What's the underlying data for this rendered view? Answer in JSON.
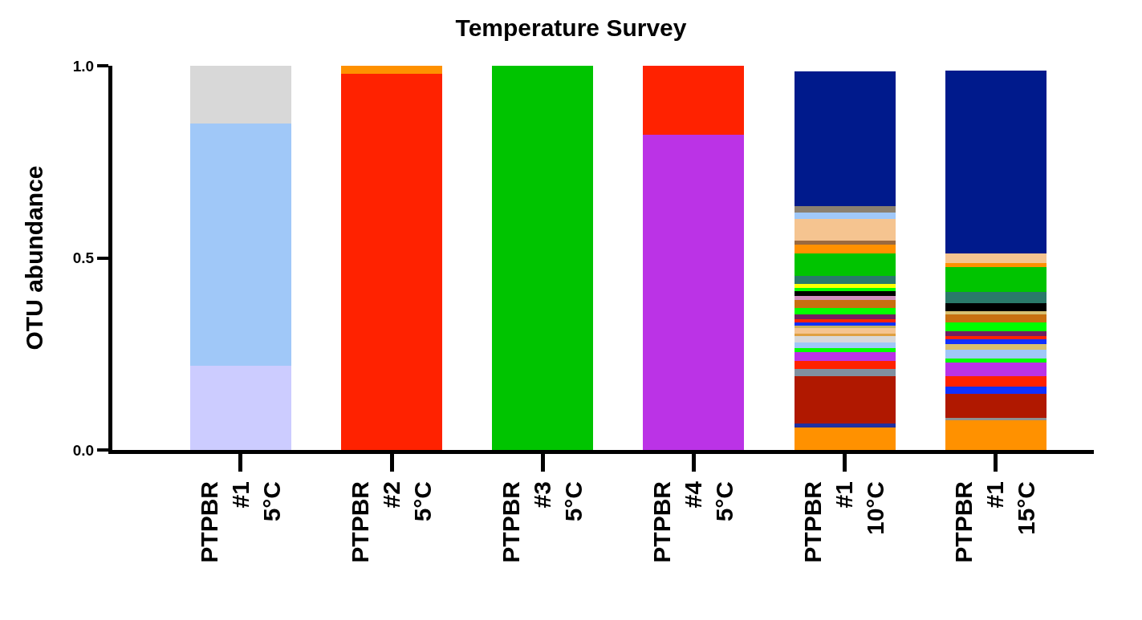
{
  "chart_data": {
    "type": "bar",
    "title": "Temperature Survey",
    "ylabel": "OTU abundance",
    "stacked": true,
    "categories": [
      "PTPBR\n#1\n5°C",
      "PTPBR\n#2\n5°C",
      "PTPBR\n#3\n5°C",
      "PTPBR\n#4\n5°C",
      "PTPBR\n#1\n10°C",
      "PTPBR\n#1\n15°C"
    ],
    "ylim": [
      0,
      1.0
    ],
    "yticks": [
      {
        "value": 0,
        "label": "0.0"
      },
      0.5,
      {
        "value": 1,
        "label": "1.0"
      }
    ],
    "series": [
      {
        "values": [
          0.22,
          0.98,
          1.0,
          0.82,
          0.058,
          0.077
        ],
        "colors": [
          "#ccccff",
          "#ff2200",
          "#00c400",
          "#bb33e6",
          "#ff9100",
          "#ff9100"
        ]
      },
      {
        "values": [
          0.63,
          0.02,
          null,
          0.18,
          0.01,
          0.007
        ],
        "colors": [
          "#a0c8f8",
          "#ff9100",
          null,
          "#ff2200",
          "#2030a0",
          "#909090"
        ]
      },
      {
        "values": [
          0.15,
          null,
          null,
          null,
          0.125,
          0.063
        ],
        "colors": [
          "#d8d8d8",
          null,
          null,
          null,
          "#b01800",
          "#b01800"
        ]
      },
      {
        "values": [
          null,
          null,
          null,
          null,
          0.017,
          0.017
        ],
        "colors": [
          null,
          null,
          null,
          null,
          "#8090a0",
          "#1030ff"
        ]
      },
      {
        "values": [
          null,
          null,
          null,
          null,
          0.021,
          0.028
        ],
        "colors": [
          null,
          null,
          null,
          null,
          "#ff2200",
          "#ff2200"
        ]
      },
      {
        "values": [
          null,
          null,
          null,
          null,
          0.024,
          0.035
        ],
        "colors": [
          null,
          null,
          null,
          null,
          "#bb33e6",
          "#bb33e6"
        ]
      },
      {
        "values": [
          null,
          null,
          null,
          null,
          0.01,
          0.01
        ],
        "colors": [
          null,
          null,
          null,
          null,
          "#00ff00",
          "#00ff00"
        ]
      },
      {
        "values": [
          null,
          null,
          null,
          null,
          0.015,
          0.024
        ],
        "colors": [
          null,
          null,
          null,
          null,
          "#a0c8f8",
          "#a0c8f8"
        ]
      },
      {
        "values": [
          null,
          null,
          null,
          null,
          0.016,
          0.014
        ],
        "colors": [
          null,
          null,
          null,
          null,
          "#d8d8d8",
          "#d8c070"
        ]
      },
      {
        "values": [
          null,
          null,
          null,
          null,
          0.007,
          0.014
        ],
        "colors": [
          null,
          null,
          null,
          null,
          "#e0a040",
          "#1030ff"
        ]
      },
      {
        "values": [
          null,
          null,
          null,
          null,
          0.014,
          0.007
        ],
        "colors": [
          null,
          null,
          null,
          null,
          "#f5c490",
          "#ff2200"
        ]
      },
      {
        "values": [
          null,
          null,
          null,
          null,
          0.007,
          0.014
        ],
        "colors": [
          null,
          null,
          null,
          null,
          "#c8b060",
          "#702060"
        ]
      },
      {
        "values": [
          null,
          null,
          null,
          null,
          0.007,
          0.021
        ],
        "colors": [
          null,
          null,
          null,
          null,
          "#1030ff",
          "#00ff00"
        ]
      },
      {
        "values": [
          null,
          null,
          null,
          null,
          0.01,
          0.021
        ],
        "colors": [
          null,
          null,
          null,
          null,
          "#ff2200",
          "#c87010"
        ]
      },
      {
        "values": [
          null,
          null,
          null,
          null,
          0.011,
          0.01
        ],
        "colors": [
          null,
          null,
          null,
          null,
          "#702060",
          "#d8c070"
        ]
      },
      {
        "values": [
          null,
          null,
          null,
          null,
          0.017,
          0.021
        ],
        "colors": [
          null,
          null,
          null,
          null,
          "#00ff00",
          "#000000"
        ]
      },
      {
        "values": [
          null,
          null,
          null,
          null,
          0.021,
          0.028
        ],
        "colors": [
          null,
          null,
          null,
          null,
          "#c87010",
          "#2a7a6a"
        ]
      },
      {
        "values": [
          null,
          null,
          null,
          null,
          0.01,
          0.066
        ],
        "colors": [
          null,
          null,
          null,
          null,
          "#d090c0",
          "#00c400"
        ]
      },
      {
        "values": [
          null,
          null,
          null,
          null,
          0.014,
          0.01
        ],
        "colors": [
          null,
          null,
          null,
          null,
          "#000000",
          "#ff9100"
        ]
      },
      {
        "values": [
          null,
          null,
          null,
          null,
          0.008,
          0.024
        ],
        "colors": [
          null,
          null,
          null,
          null,
          "#00ff00",
          "#f5c490"
        ]
      },
      {
        "values": [
          null,
          null,
          null,
          null,
          0.01,
          0.477
        ],
        "colors": [
          null,
          null,
          null,
          null,
          "#ffff00",
          "#001a8c"
        ]
      },
      {
        "values": [
          null,
          null,
          null,
          null,
          0.02,
          null
        ],
        "colors": [
          null,
          null,
          null,
          null,
          "#2a7a6a",
          null
        ]
      },
      {
        "values": [
          null,
          null,
          null,
          null,
          0.059,
          null
        ],
        "colors": [
          null,
          null,
          null,
          null,
          "#00c400",
          null
        ]
      },
      {
        "values": [
          null,
          null,
          null,
          null,
          0.024,
          null
        ],
        "colors": [
          null,
          null,
          null,
          null,
          "#ff9100",
          null
        ]
      },
      {
        "values": [
          null,
          null,
          null,
          null,
          0.01,
          null
        ],
        "colors": [
          null,
          null,
          null,
          null,
          "#9a6a40",
          null
        ]
      },
      {
        "values": [
          null,
          null,
          null,
          null,
          0.056,
          null
        ],
        "colors": [
          null,
          null,
          null,
          null,
          "#f5c490",
          null
        ]
      },
      {
        "values": [
          null,
          null,
          null,
          null,
          0.017,
          null
        ],
        "colors": [
          null,
          null,
          null,
          null,
          "#a0c8f8",
          null
        ]
      },
      {
        "values": [
          null,
          null,
          null,
          null,
          0.017,
          null
        ],
        "colors": [
          null,
          null,
          null,
          null,
          "#8a8070",
          null
        ]
      },
      {
        "values": [
          null,
          null,
          null,
          null,
          0.351,
          null
        ],
        "colors": [
          null,
          null,
          null,
          null,
          "#001a8c",
          null
        ]
      }
    ]
  }
}
